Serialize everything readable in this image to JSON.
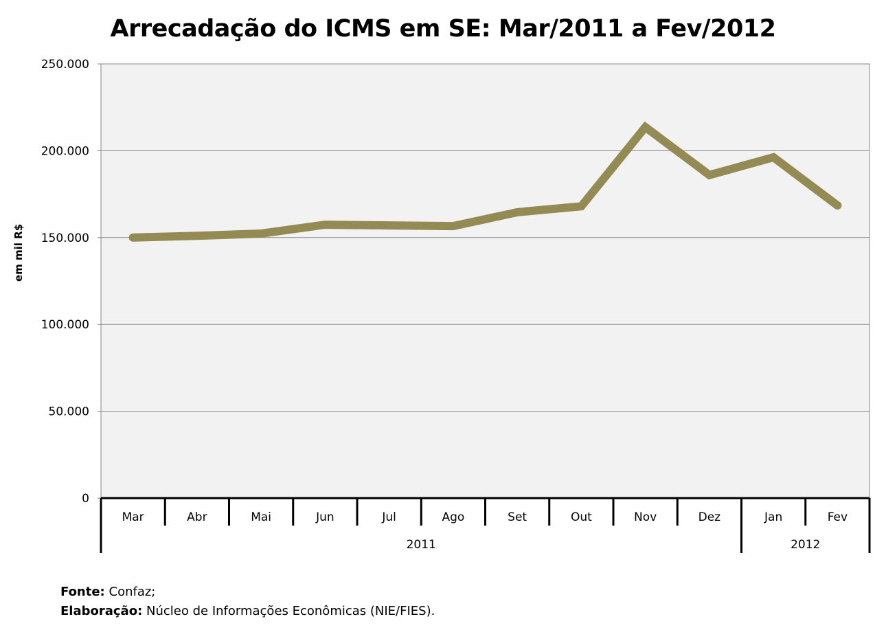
{
  "chart_data": {
    "type": "line",
    "title": "Arrecadação do ICMS em SE: Mar/2011 a Fev/2012",
    "ylabel": "em mil R$",
    "xlabel": "",
    "categories": [
      "Mar",
      "Abr",
      "Mai",
      "Jun",
      "Jul",
      "Ago",
      "Set",
      "Out",
      "Nov",
      "Dez",
      "Jan",
      "Fev"
    ],
    "groups": [
      {
        "label": "2011",
        "count": 10
      },
      {
        "label": "2012",
        "count": 2
      }
    ],
    "series": [
      {
        "name": "ICMS",
        "color": "#948a54",
        "values": [
          150000,
          151000,
          152300,
          157400,
          157000,
          156600,
          164600,
          168000,
          213600,
          186000,
          196200,
          168500
        ]
      }
    ],
    "ylim": [
      0,
      250000
    ],
    "yticks": [
      0,
      50000,
      100000,
      150000,
      200000,
      250000
    ],
    "ytick_labels": [
      "0",
      "50.000",
      "100.000",
      "150.000",
      "200.000",
      "250.000"
    ],
    "grid": true,
    "legend": "none"
  },
  "footer": {
    "source_label": "Fonte:",
    "source_value": "Confaz;",
    "credit_label": "Elaboração:",
    "credit_value": "Núcleo de Informações Econômicas (NIE/FIES)."
  }
}
